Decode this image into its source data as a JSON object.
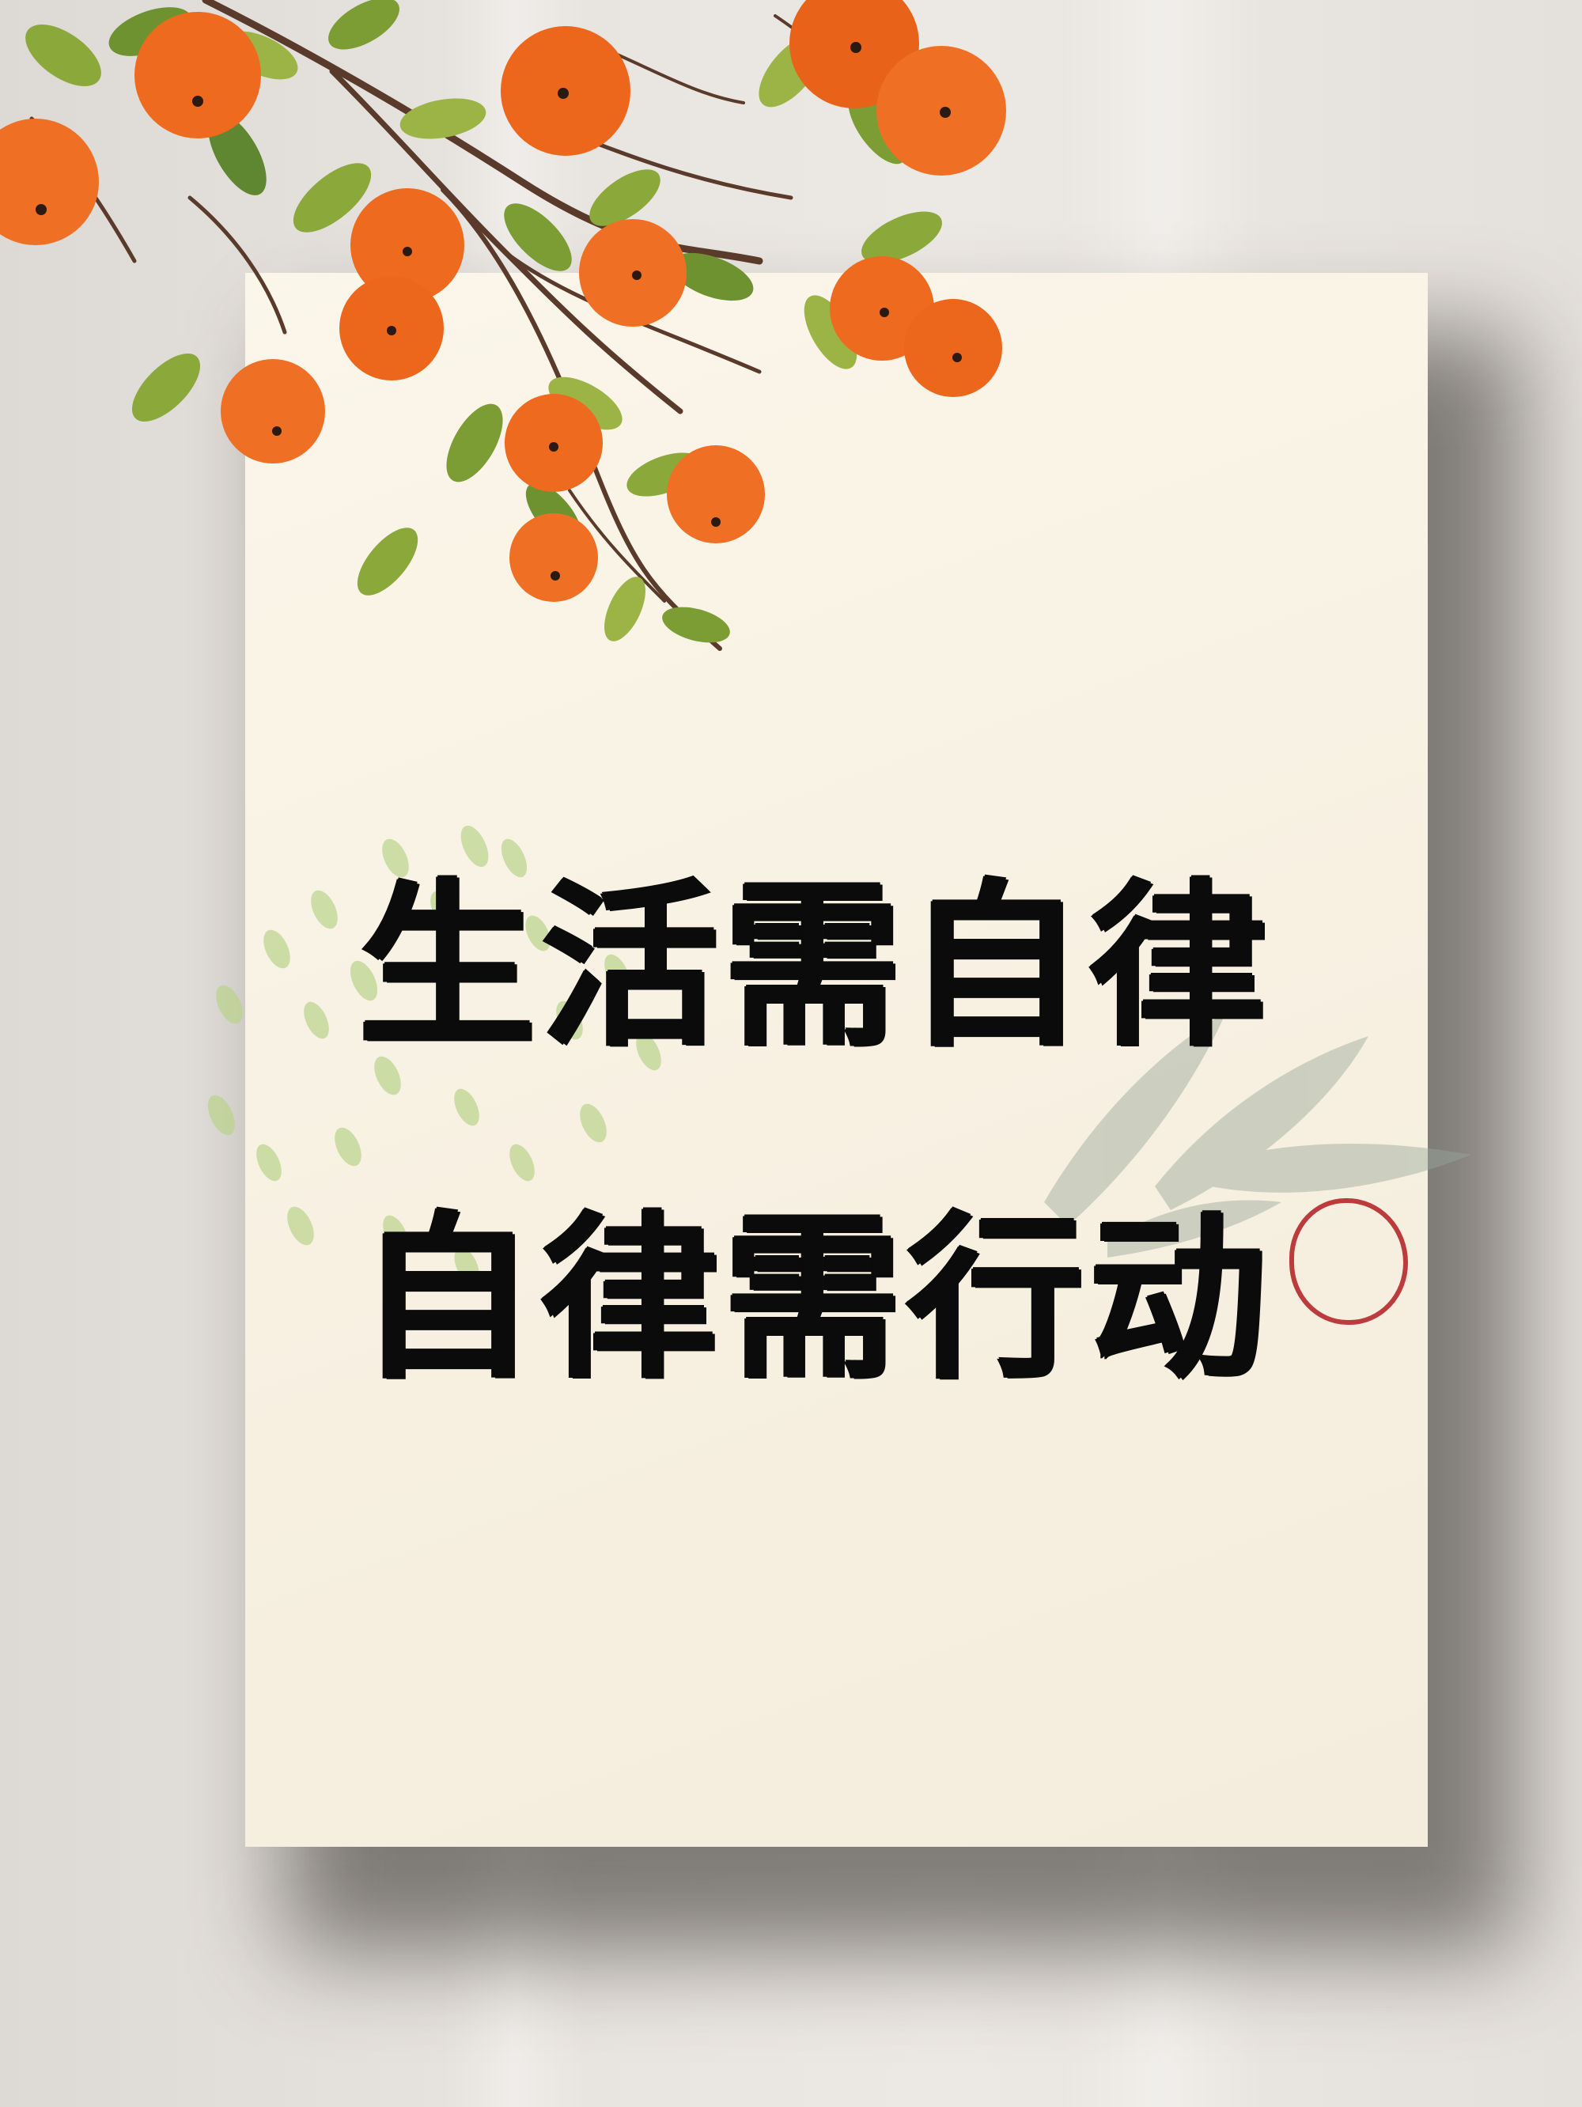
{
  "poster": {
    "line1": "生活需自律",
    "line2": "自律需行动"
  },
  "seal": {
    "text": "",
    "color": "#b6272a"
  },
  "colors": {
    "persimmon": "#ee6a1e",
    "leaf": "#8ba83a",
    "branch": "#5a3a2a",
    "card": "#f8f2e4",
    "ink": "#0b0b0b"
  }
}
